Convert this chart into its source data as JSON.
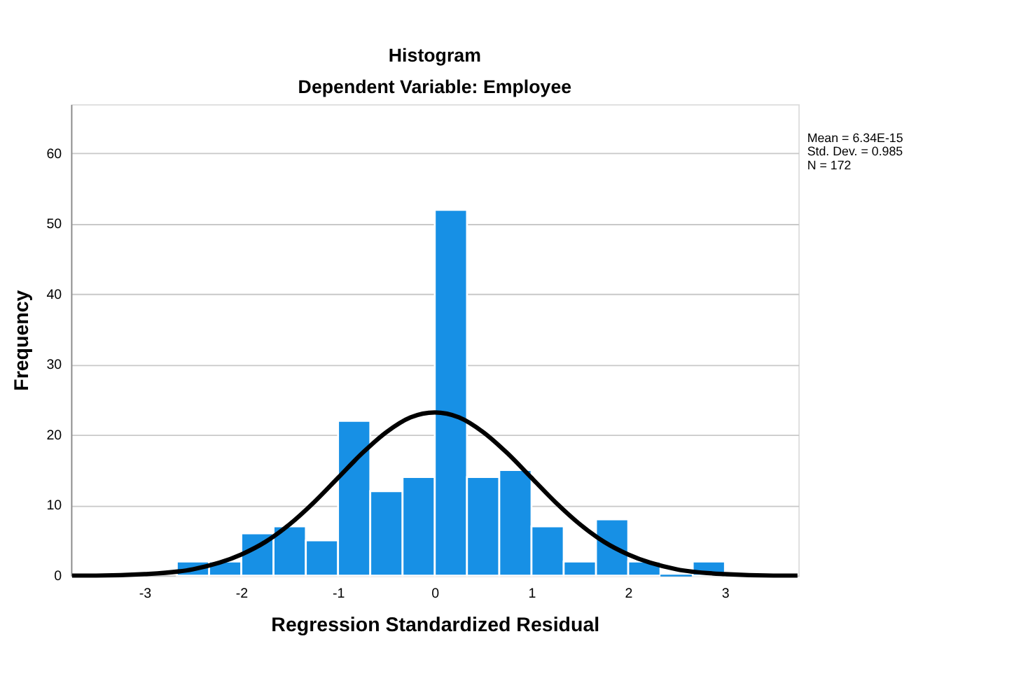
{
  "chart_data": {
    "type": "histogram",
    "title": "Histogram",
    "subtitle": "Dependent Variable: Employee",
    "xlabel": "Regression Standardized Residual",
    "ylabel": "Frequency",
    "bins": [
      -2.667,
      -2.333,
      -2.0,
      -1.667,
      -1.333,
      -1.0,
      -0.667,
      -0.333,
      0.0,
      0.333,
      0.667,
      1.0,
      1.333,
      1.667,
      2.0,
      2.333,
      2.667,
      3.0
    ],
    "values": [
      2,
      2,
      6,
      7,
      5,
      22,
      12,
      14,
      52,
      14,
      15,
      7,
      2,
      8,
      2,
      0,
      2
    ],
    "color": "#1790e5",
    "series": [
      {
        "type": "line",
        "color": "#000000",
        "x": [
          -3.75,
          -3.5,
          -3.0,
          -2.5,
          -2.0,
          -1.75,
          -1.5,
          -1.25,
          -1.0,
          -0.75,
          -0.5,
          -0.25,
          0.0,
          0.25,
          0.5,
          0.75,
          1.0,
          1.25,
          1.5,
          1.75,
          2.0,
          2.5,
          3.0,
          3.5,
          3.75
        ],
        "values": [
          0.0,
          0.0,
          0.2,
          0.9,
          3.0,
          4.8,
          7.3,
          10.4,
          13.9,
          17.4,
          20.4,
          22.5,
          23.2,
          22.5,
          20.4,
          17.4,
          13.9,
          10.4,
          7.3,
          4.8,
          3.0,
          0.9,
          0.2,
          0.0,
          0.0
        ]
      }
    ],
    "xlim": [
      -3.76,
      3.76
    ],
    "ylim": [
      0,
      67
    ],
    "xticks": [
      -3,
      -2,
      -1,
      0,
      1,
      2,
      3
    ],
    "yticks": [
      0,
      10,
      20,
      30,
      40,
      50,
      60
    ],
    "grid": "y",
    "line_style": "solid",
    "marker": "none",
    "annotations": [
      "Mean = 6.34E-15",
      "Std. Dev. = 0.985",
      "N = 172"
    ]
  }
}
